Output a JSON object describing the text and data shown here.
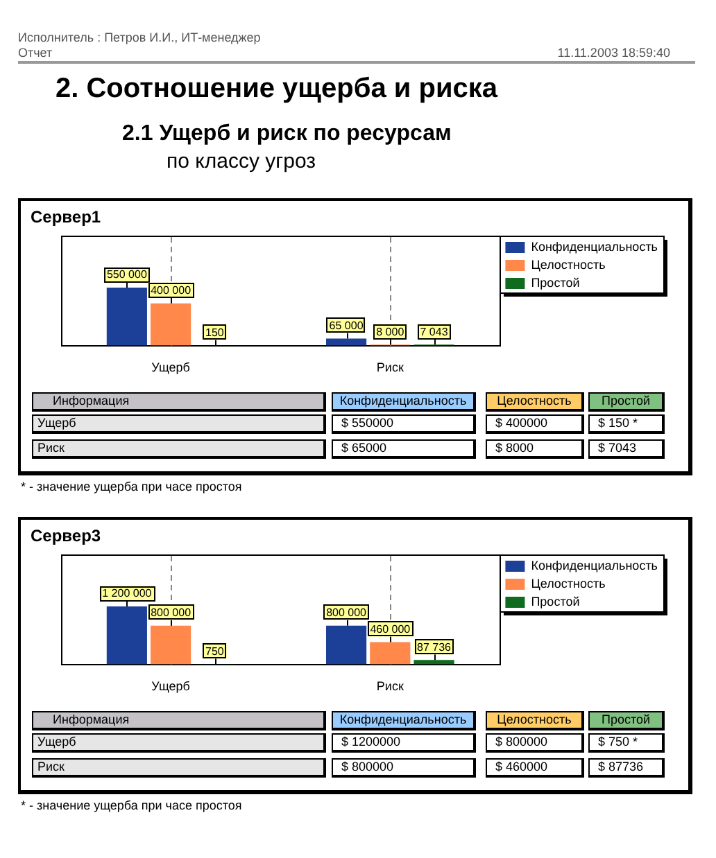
{
  "chart_data": [
    {
      "type": "other",
      "title": "2. Соотношение ущерба и риска",
      "subtitle": "2.1 Ущерб и риск по ресурсам",
      "annotations": [
        "Исполнитель : Петров И.И., ИТ-менеджер",
        "Отчет",
        "11.11.2003 18:59:40",
        "по классу угроз"
      ]
    },
    {
      "type": "bar",
      "title": "Сервер1",
      "categories": [
        "Ущерб",
        "Риск"
      ],
      "series": [
        {
          "name": "Конфиденциальность",
          "color": "#1c3f98",
          "values": [
            550000,
            65000
          ],
          "value_labels": [
            "550 000",
            "65 000"
          ]
        },
        {
          "name": "Целостность",
          "color": "#ff884a",
          "values": [
            400000,
            8000
          ],
          "value_labels": [
            "400 000",
            "8 000"
          ]
        },
        {
          "name": "Простой",
          "color": "#0f6b1e",
          "values": [
            150,
            7043
          ],
          "value_labels": [
            "150",
            "7 043"
          ]
        }
      ],
      "legend": "right",
      "grid": "x",
      "tick_labels": "x"
    },
    {
      "type": "other",
      "ylabel": "Информация",
      "categories": [
        "Конфиденциальность",
        "Целостность",
        "Простой"
      ],
      "y_categories": [
        "Ущерб",
        "Риск"
      ],
      "cell_labels": [
        [
          "$ 550000",
          "$ 400000",
          "$ 150 *"
        ],
        [
          "$ 65000",
          "$ 8000",
          "$ 7043"
        ]
      ],
      "colors": [
        "#99ccff",
        "#ffcc66",
        "#80c080"
      ],
      "annotations": [
        "* - значение ущерба при часе простоя"
      ]
    },
    {
      "type": "bar",
      "title": "Сервер3",
      "categories": [
        "Ущерб",
        "Риск"
      ],
      "series": [
        {
          "name": "Конфиденциальность",
          "color": "#1c3f98",
          "values": [
            1200000,
            800000
          ],
          "value_labels": [
            "1 200 000",
            "800 000"
          ]
        },
        {
          "name": "Целостность",
          "color": "#ff884a",
          "values": [
            800000,
            460000
          ],
          "value_labels": [
            "800 000",
            "460 000"
          ]
        },
        {
          "name": "Простой",
          "color": "#0f6b1e",
          "values": [
            750,
            87736
          ],
          "value_labels": [
            "750",
            "87 736"
          ]
        }
      ],
      "legend": "right",
      "grid": "x",
      "tick_labels": "x"
    },
    {
      "type": "other",
      "ylabel": "Информация",
      "categories": [
        "Конфиденциальность",
        "Целостность",
        "Простой"
      ],
      "y_categories": [
        "Ущерб",
        "Риск"
      ],
      "cell_labels": [
        [
          "$ 1200000",
          "$ 800000",
          "$ 750 *"
        ],
        [
          "$ 800000",
          "$ 460000",
          "$ 87736"
        ]
      ],
      "colors": [
        "#99ccff",
        "#ffcc66",
        "#80c080"
      ],
      "annotations": [
        "* - значение ущерба при часе простоя"
      ]
    }
  ]
}
